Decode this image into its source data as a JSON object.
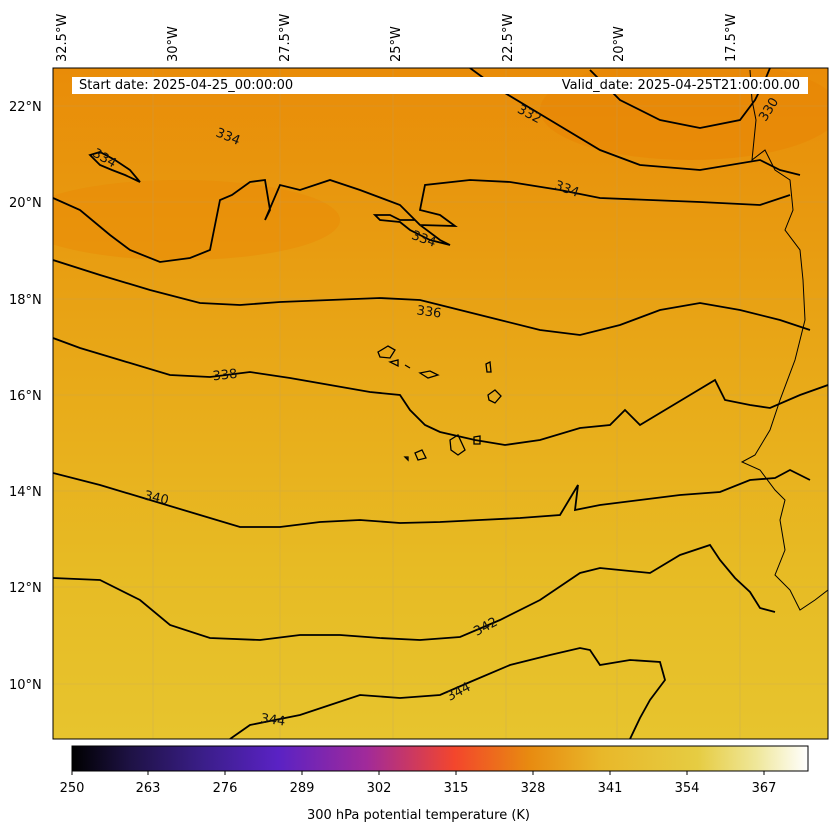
{
  "header": {
    "start_date": "Start date: 2025-04-25_00:00:00",
    "valid_date": "Valid_date: 2025-04-25T21:00:00.00"
  },
  "map": {
    "lon_labels": [
      "32.5°W",
      "30°W",
      "27.5°W",
      "25°W",
      "22.5°W",
      "20°W",
      "17.5°W"
    ],
    "lat_labels": [
      "22°N",
      "20°N",
      "18°N",
      "16°N",
      "14°N",
      "12°N",
      "10°N"
    ],
    "contour_labels": [
      "332",
      "334",
      "334",
      "334",
      "334",
      "336",
      "338",
      "340",
      "342",
      "344",
      "344",
      "330"
    ],
    "fill_colors": {
      "north": "#e98e08",
      "south": "#e7c32c"
    },
    "contour_color": "#000000",
    "grid": true
  },
  "colorbar": {
    "ticks": [
      "250",
      "263",
      "276",
      "289",
      "302",
      "315",
      "328",
      "341",
      "354",
      "367"
    ],
    "label": "300 hPa potential temperature (K)",
    "colors": [
      "#000000",
      "#1e1245",
      "#3b1e8a",
      "#5a22c4",
      "#a12a9a",
      "#e83a3a",
      "#f3462c",
      "#e88a10",
      "#e8b82a",
      "#e6cc42",
      "#efe79a",
      "#ffffff"
    ]
  }
}
